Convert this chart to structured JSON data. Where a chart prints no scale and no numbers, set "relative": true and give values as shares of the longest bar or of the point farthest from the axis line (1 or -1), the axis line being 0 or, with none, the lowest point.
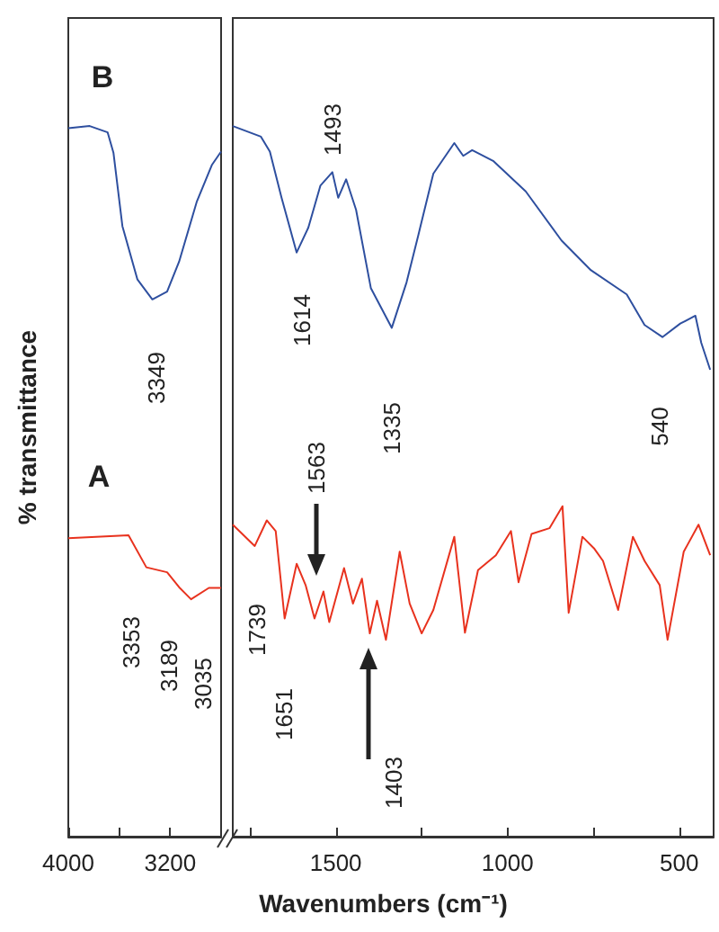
{
  "chart_data": [
    {
      "type": "line",
      "relative": true,
      "ylabel": "% transmittance",
      "xlim": [
        4000,
        2800
      ],
      "xticks": [
        4000,
        {
          "value": 3600,
          "label": null
        },
        3200
      ],
      "series": [
        {
          "color": "#2e4f9f",
          "x": [
            4000,
            3832,
            3691,
            3645,
            3575,
            3457,
            3340,
            3224,
            3130,
            2990,
            2873,
            2800
          ],
          "values": [
            0.997,
            1,
            0.991,
            0.962,
            0.859,
            0.784,
            0.756,
            0.767,
            0.809,
            0.894,
            0.945,
            0.964
          ]
        },
        {
          "color": "#e8321e",
          "x": [
            4000,
            3527,
            3387,
            3224,
            3130,
            3036,
            2896,
            2800
          ],
          "values": [
            0.42,
            0.424,
            0.379,
            0.372,
            0.351,
            0.334,
            0.35,
            0.35
          ]
        }
      ],
      "annotations": [
        "B",
        "3349",
        "A",
        "3353",
        "3189",
        "3035"
      ]
    },
    {
      "type": "line",
      "relative": true,
      "xlabel": "Wavenumbers (cm⁻¹)",
      "xlim": [
        1800,
        400
      ],
      "xticks": [
        {
          "value": 1750,
          "label": null
        },
        1500,
        {
          "value": 1250,
          "label": null
        },
        1000,
        {
          "value": 750,
          "label": null
        },
        500
      ],
      "series": [
        {
          "color": "#2e4f9f",
          "x": [
            1800,
            1718,
            1692,
            1658,
            1614,
            1580,
            1545,
            1510,
            1493,
            1470,
            1441,
            1398,
            1337,
            1294,
            1259,
            1216,
            1155,
            1129,
            1103,
            1042,
            947,
            843,
            757,
            653,
            601,
            549,
            497,
            453,
            436,
            410
          ],
          "values": [
            1,
            0.985,
            0.964,
            0.899,
            0.822,
            0.857,
            0.916,
            0.935,
            0.899,
            0.925,
            0.882,
            0.772,
            0.716,
            0.78,
            0.848,
            0.933,
            0.976,
            0.958,
            0.966,
            0.951,
            0.908,
            0.839,
            0.797,
            0.763,
            0.72,
            0.703,
            0.722,
            0.733,
            0.695,
            0.657
          ]
        },
        {
          "color": "#e8321e",
          "x": [
            1800,
            1736,
            1701,
            1675,
            1649,
            1614,
            1588,
            1562,
            1536,
            1519,
            1476,
            1450,
            1424,
            1401,
            1380,
            1354,
            1314,
            1285,
            1250,
            1216,
            1155,
            1124,
            1086,
            1034,
            990,
            968,
            930,
            878,
            840,
            822,
            782,
            747,
            722,
            678,
            635,
            601,
            557,
            534,
            487,
            444,
            410
          ],
          "values": [
            0.439,
            0.409,
            0.445,
            0.43,
            0.307,
            0.384,
            0.354,
            0.307,
            0.345,
            0.302,
            0.378,
            0.328,
            0.363,
            0.286,
            0.332,
            0.277,
            0.401,
            0.328,
            0.286,
            0.319,
            0.422,
            0.287,
            0.375,
            0.396,
            0.43,
            0.358,
            0.426,
            0.434,
            0.465,
            0.315,
            0.422,
            0.405,
            0.388,
            0.319,
            0.422,
            0.388,
            0.354,
            0.277,
            0.401,
            0.439,
            0.396
          ]
        }
      ],
      "annotations": [
        "1493",
        "1614",
        "1335",
        "540",
        "1563",
        "1739",
        "1651",
        "1403"
      ]
    }
  ]
}
